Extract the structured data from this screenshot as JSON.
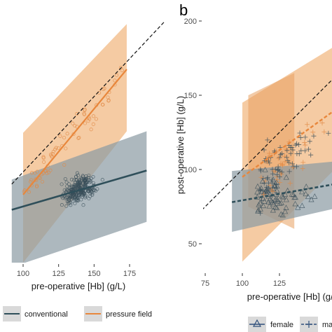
{
  "colors": {
    "conventional": "#2f4f5a",
    "conventional_band": "#8a9aa3",
    "pressure_field": "#e8873c",
    "pressure_band": "#f3c293",
    "reference_line": "#111111",
    "background": "#ffffff"
  },
  "chart_data": [
    {
      "type": "scatter",
      "panel_label": "",
      "title": "",
      "xlabel": "pre-operative [Hb] (g/L)",
      "ylabel": "",
      "xlim": [
        92,
        192
      ],
      "ylim": [
        40,
        200
      ],
      "x_ticks": [
        100,
        125,
        150,
        175
      ],
      "reference_line": "identity (dashed)",
      "grid": false,
      "series": [
        {
          "name": "conventional",
          "fit": {
            "x": [
              92,
              187
            ],
            "y": [
              75,
              101
            ]
          },
          "band": {
            "x": [
              92,
              187
            ],
            "upper": [
              95,
              127
            ],
            "lower": [
              37,
              67
            ]
          },
          "points": {
            "x_range": [
              95,
              185
            ],
            "y_range": [
              45,
              125
            ],
            "count": 260,
            "marker": "circle"
          }
        },
        {
          "name": "pressure field",
          "fit": {
            "x": [
              100,
              173
            ],
            "y": [
              85,
              168
            ]
          },
          "band": {
            "x": [
              100,
              173
            ],
            "upper": [
              126,
              198
            ],
            "lower": [
              40,
              127
            ]
          },
          "points": {
            "x_range": [
              100,
              172
            ],
            "y_range": [
              60,
              190
            ],
            "count": 75,
            "marker": "circle"
          }
        }
      ],
      "legend": {
        "placement": "bottom",
        "entries": [
          "conventional",
          "pressure field"
        ]
      }
    },
    {
      "type": "scatter",
      "panel_label": "b",
      "title": "",
      "xlabel": "pre-operative [Hb] (g/L)",
      "ylabel": "post-operative [Hb] (g/L)",
      "xlim": [
        70,
        190
      ],
      "ylim": [
        40,
        200
      ],
      "x_ticks": [
        75,
        100,
        125
      ],
      "y_ticks": [
        50,
        100,
        150,
        200
      ],
      "reference_line": "identity (dashed)",
      "grid": false,
      "series": [
        {
          "name": "female",
          "marker": "triangle",
          "fit": {
            "x": [
              93,
              190
            ],
            "y": [
              78,
              95
            ]
          },
          "band": {
            "x": [
              93,
              190
            ],
            "upper": [
              99,
              108
            ],
            "lower": [
              58,
              80
            ]
          },
          "points": {
            "x_range": [
              93,
              190
            ],
            "y_range": [
              48,
              140
            ],
            "count": 70
          }
        },
        {
          "name": "male",
          "marker": "plus",
          "fit": {
            "x": [
              100,
              190
            ],
            "y": [
              95,
              160
            ]
          },
          "band": {
            "x": [
              100,
              190
            ],
            "upper": [
              145,
              200
            ],
            "lower": [
              38,
              128
            ]
          },
          "points": {
            "x_range": [
              100,
              190
            ],
            "y_range": [
              55,
              170
            ],
            "count": 110
          }
        }
      ],
      "legend": {
        "placement": "bottom",
        "entries": [
          "female",
          "male"
        ],
        "visible_labels": [
          "female",
          "mal"
        ]
      }
    }
  ]
}
